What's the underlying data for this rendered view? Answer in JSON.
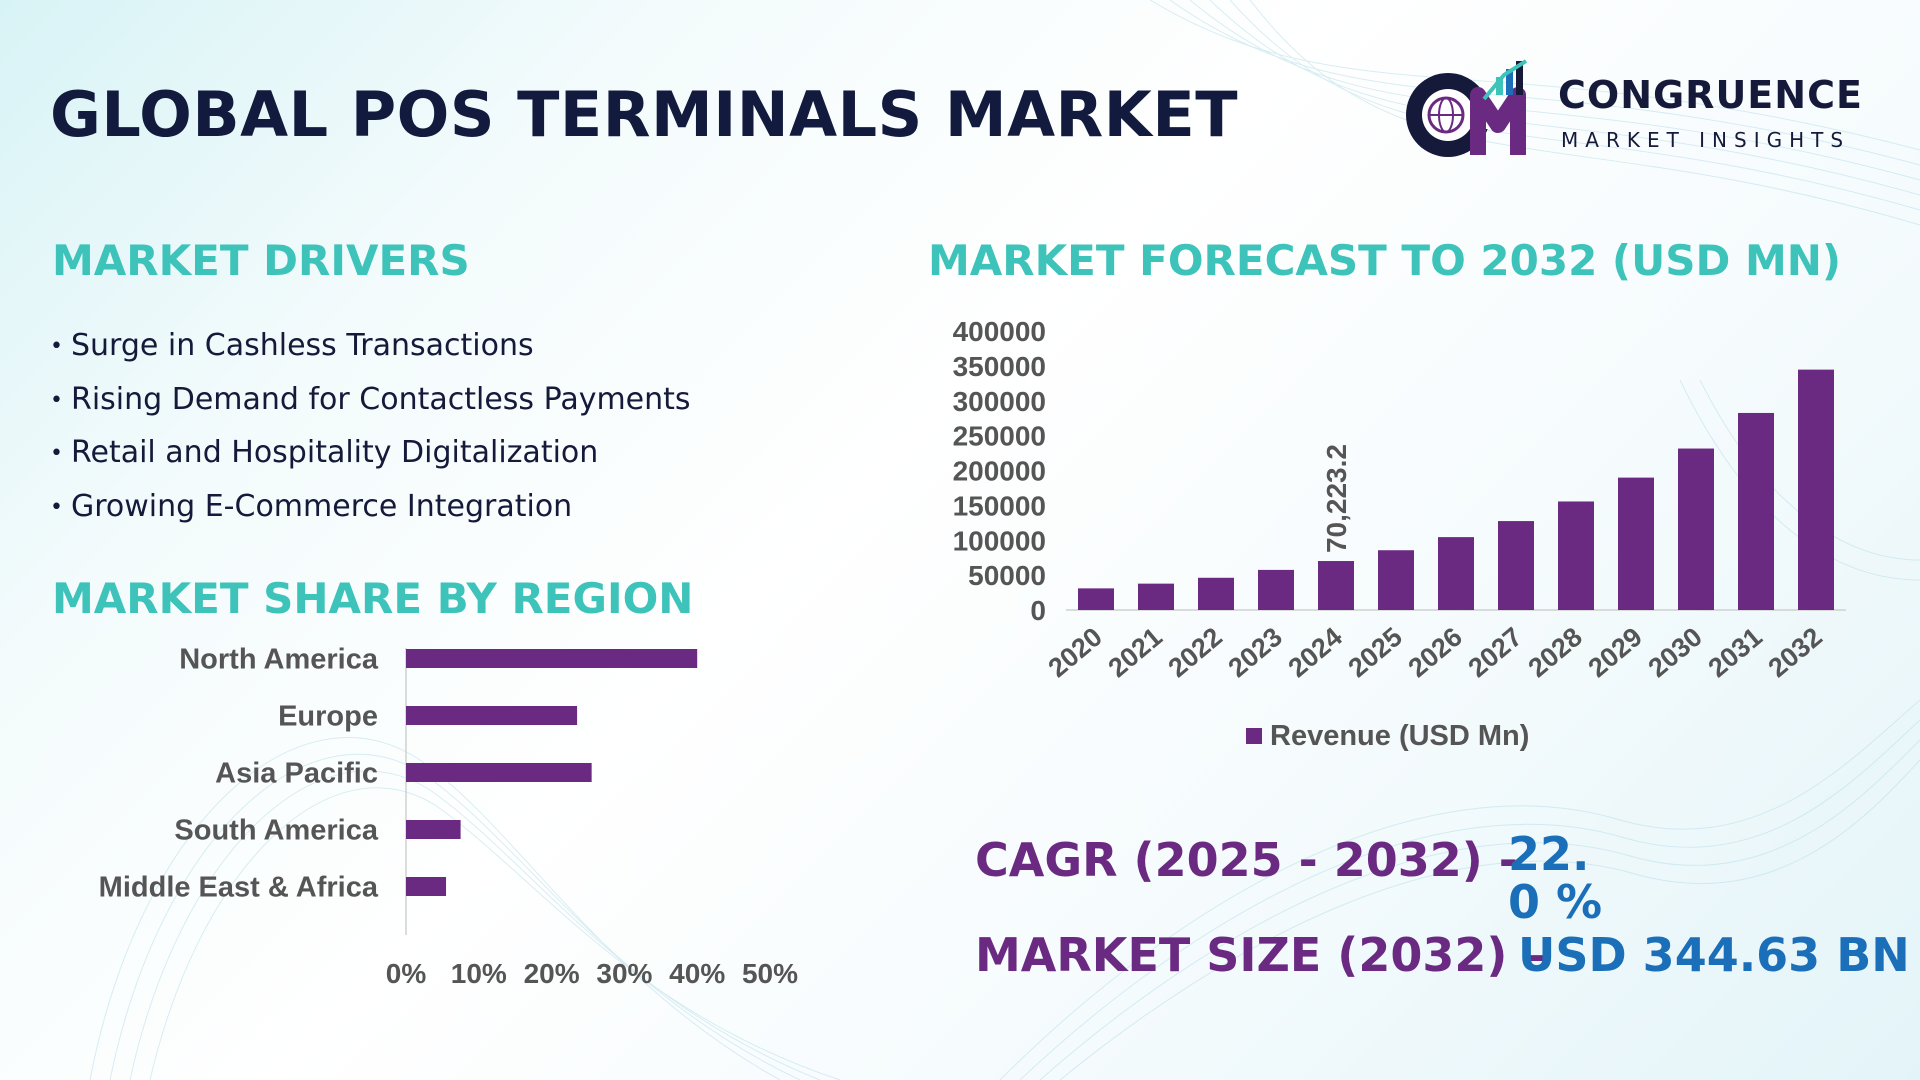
{
  "title": "GLOBAL POS TERMINALS MARKET",
  "brand": {
    "name": "CONGRUENCE",
    "tagline": "MARKET INSIGHTS",
    "colors": {
      "navy": "#161a3a",
      "purple": "#6b2a82",
      "teal": "#3dc3b9",
      "blue": "#1b6fb8"
    }
  },
  "drivers": {
    "title": "MARKET DRIVERS",
    "items": [
      "Surge in Cashless Transactions",
      "Rising Demand for Contactless Payments",
      "Retail and Hospitality Digitalization",
      "Growing E-Commerce Integration"
    ]
  },
  "region": {
    "title": "MARKET SHARE BY REGION"
  },
  "forecast": {
    "title": "MARKET FORECAST TO 2032 (USD MN)"
  },
  "stats": {
    "cagr_label": "CAGR (2025 - 2032) -",
    "cagr_value": "22.0 %",
    "size_label": "MARKET SIZE (2032) –",
    "size_value": "USD 344.63 BN"
  },
  "chart_data": [
    {
      "type": "bar",
      "orientation": "vertical",
      "categories": [
        "2020",
        "2021",
        "2022",
        "2023",
        "2024",
        "2025",
        "2026",
        "2027",
        "2028",
        "2029",
        "2030",
        "2031",
        "2032"
      ],
      "series": [
        {
          "name": "Revenue (USD Mn)",
          "values": [
            31000,
            37800,
            46200,
            57500,
            70223.2,
            85700,
            104500,
            127500,
            155600,
            189800,
            231500,
            282500,
            344630
          ],
          "color": "#6b2a82"
        }
      ],
      "ylim": [
        0,
        400000
      ],
      "yticks": [
        "400000",
        "350000",
        "300000",
        "250000",
        "200000",
        "150000",
        "100000",
        "50000",
        "0"
      ],
      "annotations": [
        {
          "category": "2024",
          "label": "70,223.2"
        }
      ],
      "legend": "bottom",
      "grid": false
    },
    {
      "type": "bar",
      "orientation": "horizontal",
      "categories": [
        "North America",
        "Europe",
        "Asia Pacific",
        "South America",
        "Middle East & Africa"
      ],
      "values": [
        0.4,
        0.235,
        0.255,
        0.075,
        0.055
      ],
      "xlim": [
        0,
        0.5
      ],
      "xticks": [
        "0%",
        "10%",
        "20%",
        "30%",
        "40%",
        "50%"
      ],
      "color": "#6b2a82",
      "grid": false
    }
  ]
}
